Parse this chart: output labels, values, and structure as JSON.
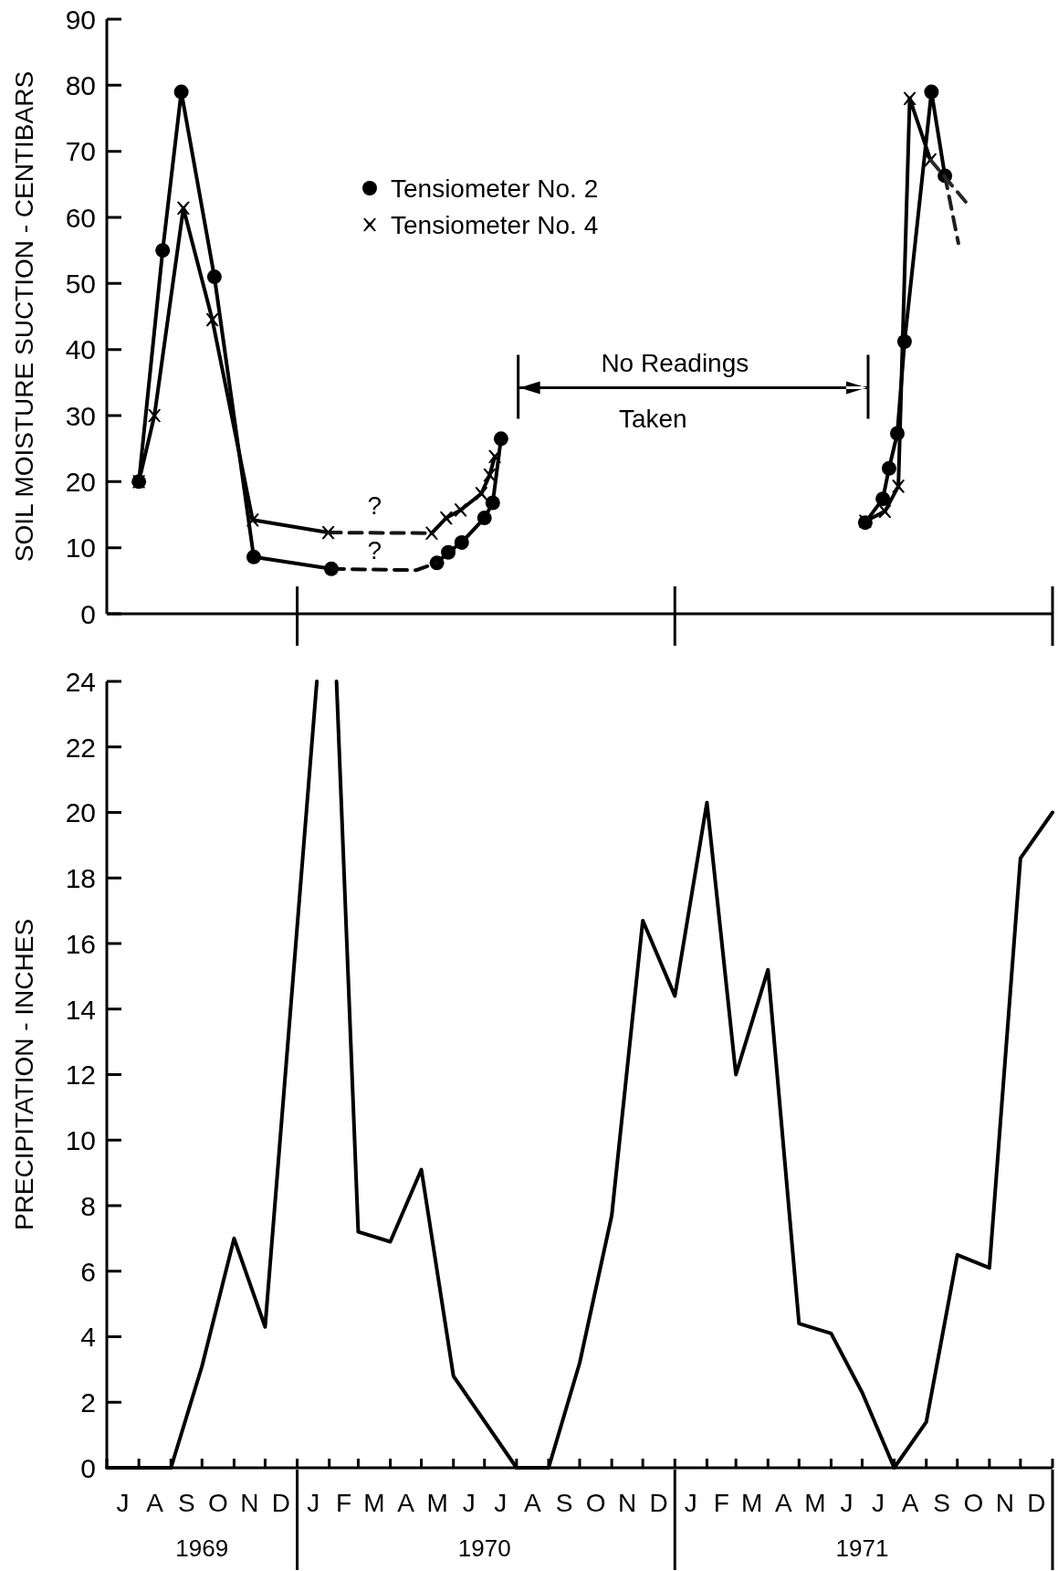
{
  "chart_data": [
    {
      "type": "line",
      "ylabel": "SOIL MOISTURE SUCTION - CENTIBARS",
      "xlim": [
        "1969-07-01",
        "1972-01-01"
      ],
      "ylim": [
        0,
        90
      ],
      "yticks": [
        0,
        10,
        20,
        30,
        40,
        50,
        60,
        70,
        80,
        90
      ],
      "tick_labels": "y",
      "legend": "top",
      "grid": false,
      "series": [
        {
          "name": "Tensiometer No. 2",
          "color": "#000000",
          "marker": "circle",
          "line_style": "solid",
          "x": [
            "1969-08-01",
            "1969-08-24",
            "1969-09-11",
            "1969-10-13",
            "1969-11-20",
            "1970-02-03",
            "1970-03-15",
            "1970-05-16",
            "1970-05-27",
            "1970-06-09",
            "1970-07-01",
            "1970-07-09",
            "1970-07-17",
            "1971-01-01",
            "1971-07-04",
            "1971-07-21",
            "1971-07-27",
            "1971-08-04",
            "1971-08-11",
            "1971-09-06",
            "1971-09-19"
          ],
          "values": [
            20,
            55,
            79,
            51,
            8.6,
            6.8,
            null,
            7.7,
            9.3,
            10.8,
            14.5,
            16.8,
            26.5,
            null,
            13.8,
            17.4,
            22,
            27.3,
            41.2,
            79,
            66.3
          ]
        },
        {
          "name": "Tensiometer No. 4",
          "color": "#000000",
          "marker": "cross",
          "line_style": "solid",
          "x": [
            "1969-08-01",
            "1969-08-16",
            "1969-09-13",
            "1969-10-11",
            "1969-11-19",
            "1970-01-31",
            "1970-03-15",
            "1970-05-11",
            "1970-05-25",
            "1970-06-08",
            "1970-06-28",
            "1970-07-06",
            "1970-07-11",
            "1971-01-01",
            "1971-07-04",
            "1971-07-23",
            "1971-08-05",
            "1971-08-16",
            "1971-09-05"
          ],
          "values": [
            20,
            30,
            61.4,
            44.5,
            14.2,
            12.3,
            null,
            12.2,
            14.5,
            15.7,
            18.2,
            21,
            23.8,
            null,
            14,
            15.5,
            19.3,
            78,
            68.7
          ]
        },
        {
          "color": "#0a0a0a",
          "marker": "none",
          "line_style": "dashed",
          "x": [
            "1970-02-03",
            "1970-04-26",
            "1970-05-16"
          ],
          "values": [
            6.8,
            6.6,
            7.7
          ]
        },
        {
          "color": "#141414",
          "marker": "none",
          "line_style": "dashed",
          "x": [
            "1970-01-31",
            "1970-05-11"
          ],
          "values": [
            12.3,
            12.2
          ]
        },
        {
          "color": "#1e1e1e",
          "marker": "none",
          "line_style": "dashed",
          "x": [
            "1971-09-19",
            "1971-10-02"
          ],
          "values": [
            66.3,
            56.1
          ]
        },
        {
          "color": "#282828",
          "marker": "none",
          "line_style": "dashed",
          "x": [
            "1971-09-05",
            "1971-10-11"
          ],
          "values": [
            68.7,
            62
          ]
        }
      ],
      "annotations": [
        "No Readings Taken",
        "?",
        "?"
      ]
    },
    {
      "type": "line",
      "ylabel": "PRECIPITATION - INCHES",
      "xlim": [
        "1969-07-01",
        "1972-01-01"
      ],
      "ylim": [
        0,
        24
      ],
      "yticks": [
        0,
        2,
        4,
        6,
        8,
        10,
        12,
        14,
        16,
        18,
        20,
        22,
        24
      ],
      "grid": false,
      "xticks": [
        {
          "value": "1969-07-01",
          "label": null
        },
        {
          "value": "1969-08-01",
          "label": null
        },
        {
          "value": "1969-09-01",
          "label": null
        },
        {
          "value": "1969-10-01",
          "label": null
        },
        {
          "value": "1969-11-01",
          "label": null
        },
        {
          "value": "1969-12-01",
          "label": null
        },
        {
          "value": "1970-01-01",
          "label": null
        },
        {
          "value": "1970-02-01",
          "label": null
        },
        {
          "value": "1970-03-01",
          "label": null
        },
        {
          "value": "1970-04-01",
          "label": null
        },
        {
          "value": "1970-05-01",
          "label": null
        },
        {
          "value": "1970-06-01",
          "label": null
        },
        {
          "value": "1970-07-01",
          "label": null
        },
        {
          "value": "1970-08-01",
          "label": null
        },
        {
          "value": "1970-09-01",
          "label": null
        },
        {
          "value": "1970-10-01",
          "label": null
        },
        {
          "value": "1970-11-01",
          "label": null
        },
        {
          "value": "1970-12-01",
          "label": null
        },
        {
          "value": "1971-01-01",
          "label": null
        },
        {
          "value": "1971-02-01",
          "label": null
        },
        {
          "value": "1971-03-01",
          "label": null
        },
        {
          "value": "1971-04-01",
          "label": null
        },
        {
          "value": "1971-05-01",
          "label": null
        },
        {
          "value": "1971-06-01",
          "label": null
        },
        {
          "value": "1971-07-01",
          "label": null
        },
        {
          "value": "1971-08-01",
          "label": null
        },
        {
          "value": "1971-09-01",
          "label": null
        },
        {
          "value": "1971-10-01",
          "label": null
        },
        {
          "value": "1971-11-01",
          "label": null
        },
        {
          "value": "1971-12-01",
          "label": null
        },
        {
          "value": "1972-01-01",
          "label": null
        },
        {
          "value": "1969-10-01",
          "label": "1969"
        },
        {
          "value": "1970-07-01",
          "label": "1970"
        },
        {
          "value": "1971-07-01",
          "label": "1971"
        }
      ],
      "annotations": [
        "J",
        "A",
        "S",
        "O",
        "N",
        "D",
        "J",
        "F",
        "M",
        "A",
        "M",
        "J",
        "J",
        "A",
        "S",
        "O",
        "N",
        "D",
        "J",
        "F",
        "M",
        "A",
        "M",
        "J",
        "J",
        "A",
        "S",
        "O",
        "N",
        "D"
      ],
      "series": [
        {
          "color": "#000000",
          "x": [
            "1969-07-01",
            "1969-08-01",
            "1969-09-01",
            "1969-10-01",
            "1969-11-01",
            "1969-12-01",
            "1970-01-20",
            "1970-01-31",
            "1970-02-08",
            "1970-03-01",
            "1970-04-01",
            "1970-05-01",
            "1970-06-01",
            "1970-08-01",
            "1970-09-01",
            "1970-10-01",
            "1970-11-01",
            "1970-12-01",
            "1971-01-01",
            "1971-02-01",
            "1971-03-01",
            "1971-04-01",
            "1971-05-01",
            "1971-06-01",
            "1971-07-01",
            "1971-08-01",
            "1971-09-01",
            "1971-10-01",
            "1971-11-01",
            "1971-12-01",
            "1972-01-01"
          ],
          "values": [
            0,
            0,
            0,
            3.1,
            7.0,
            4.3,
            24,
            null,
            24,
            7.2,
            6.9,
            9.1,
            2.8,
            0,
            0,
            3.2,
            7.7,
            16.7,
            14.4,
            20.3,
            12.0,
            15.2,
            4.4,
            4.1,
            2.3,
            0,
            1.4,
            6.5,
            6.1,
            18.6,
            20.0
          ]
        }
      ]
    }
  ]
}
